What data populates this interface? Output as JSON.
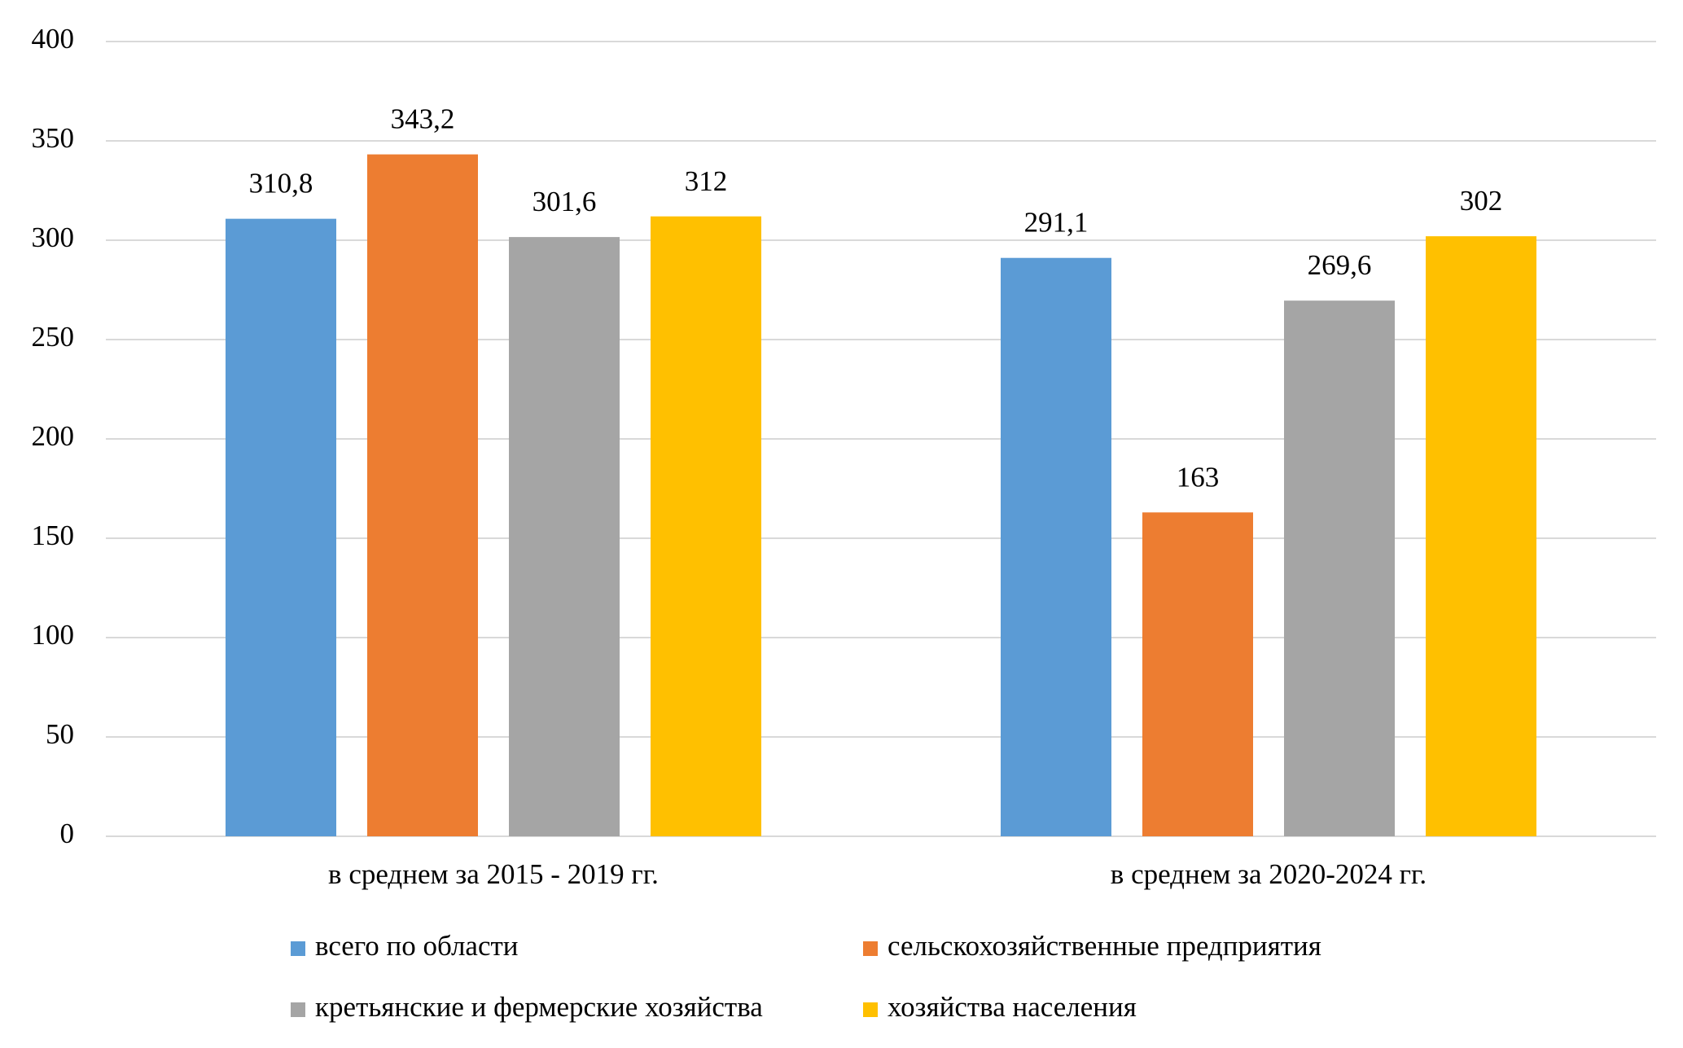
{
  "chart_data": {
    "type": "bar",
    "categories": [
      "в среднем за 2015 - 2019 гг.",
      "в среднем за 2020-2024 гг."
    ],
    "series": [
      {
        "name": "всего по области",
        "color": "#5b9bd5",
        "values": [
          310.8,
          291.1
        ],
        "value_labels": [
          "310,8",
          "291,1"
        ]
      },
      {
        "name": "сельскохозяйственные предприятия",
        "color": "#ed7d31",
        "values": [
          343.2,
          163
        ],
        "value_labels": [
          "343,2",
          "163"
        ]
      },
      {
        "name": "кретьянские и фермерские хозяйства",
        "color": "#a5a5a5",
        "values": [
          301.6,
          269.6
        ],
        "value_labels": [
          "301,6",
          "269,6"
        ]
      },
      {
        "name": "хозяйства населения",
        "color": "#ffc000",
        "values": [
          312,
          302
        ],
        "value_labels": [
          "312",
          "302"
        ]
      }
    ],
    "ylim": [
      0,
      400
    ],
    "yticks": [
      0,
      50,
      100,
      150,
      200,
      250,
      300,
      350,
      400
    ],
    "grid": true,
    "legend": "bottom"
  }
}
